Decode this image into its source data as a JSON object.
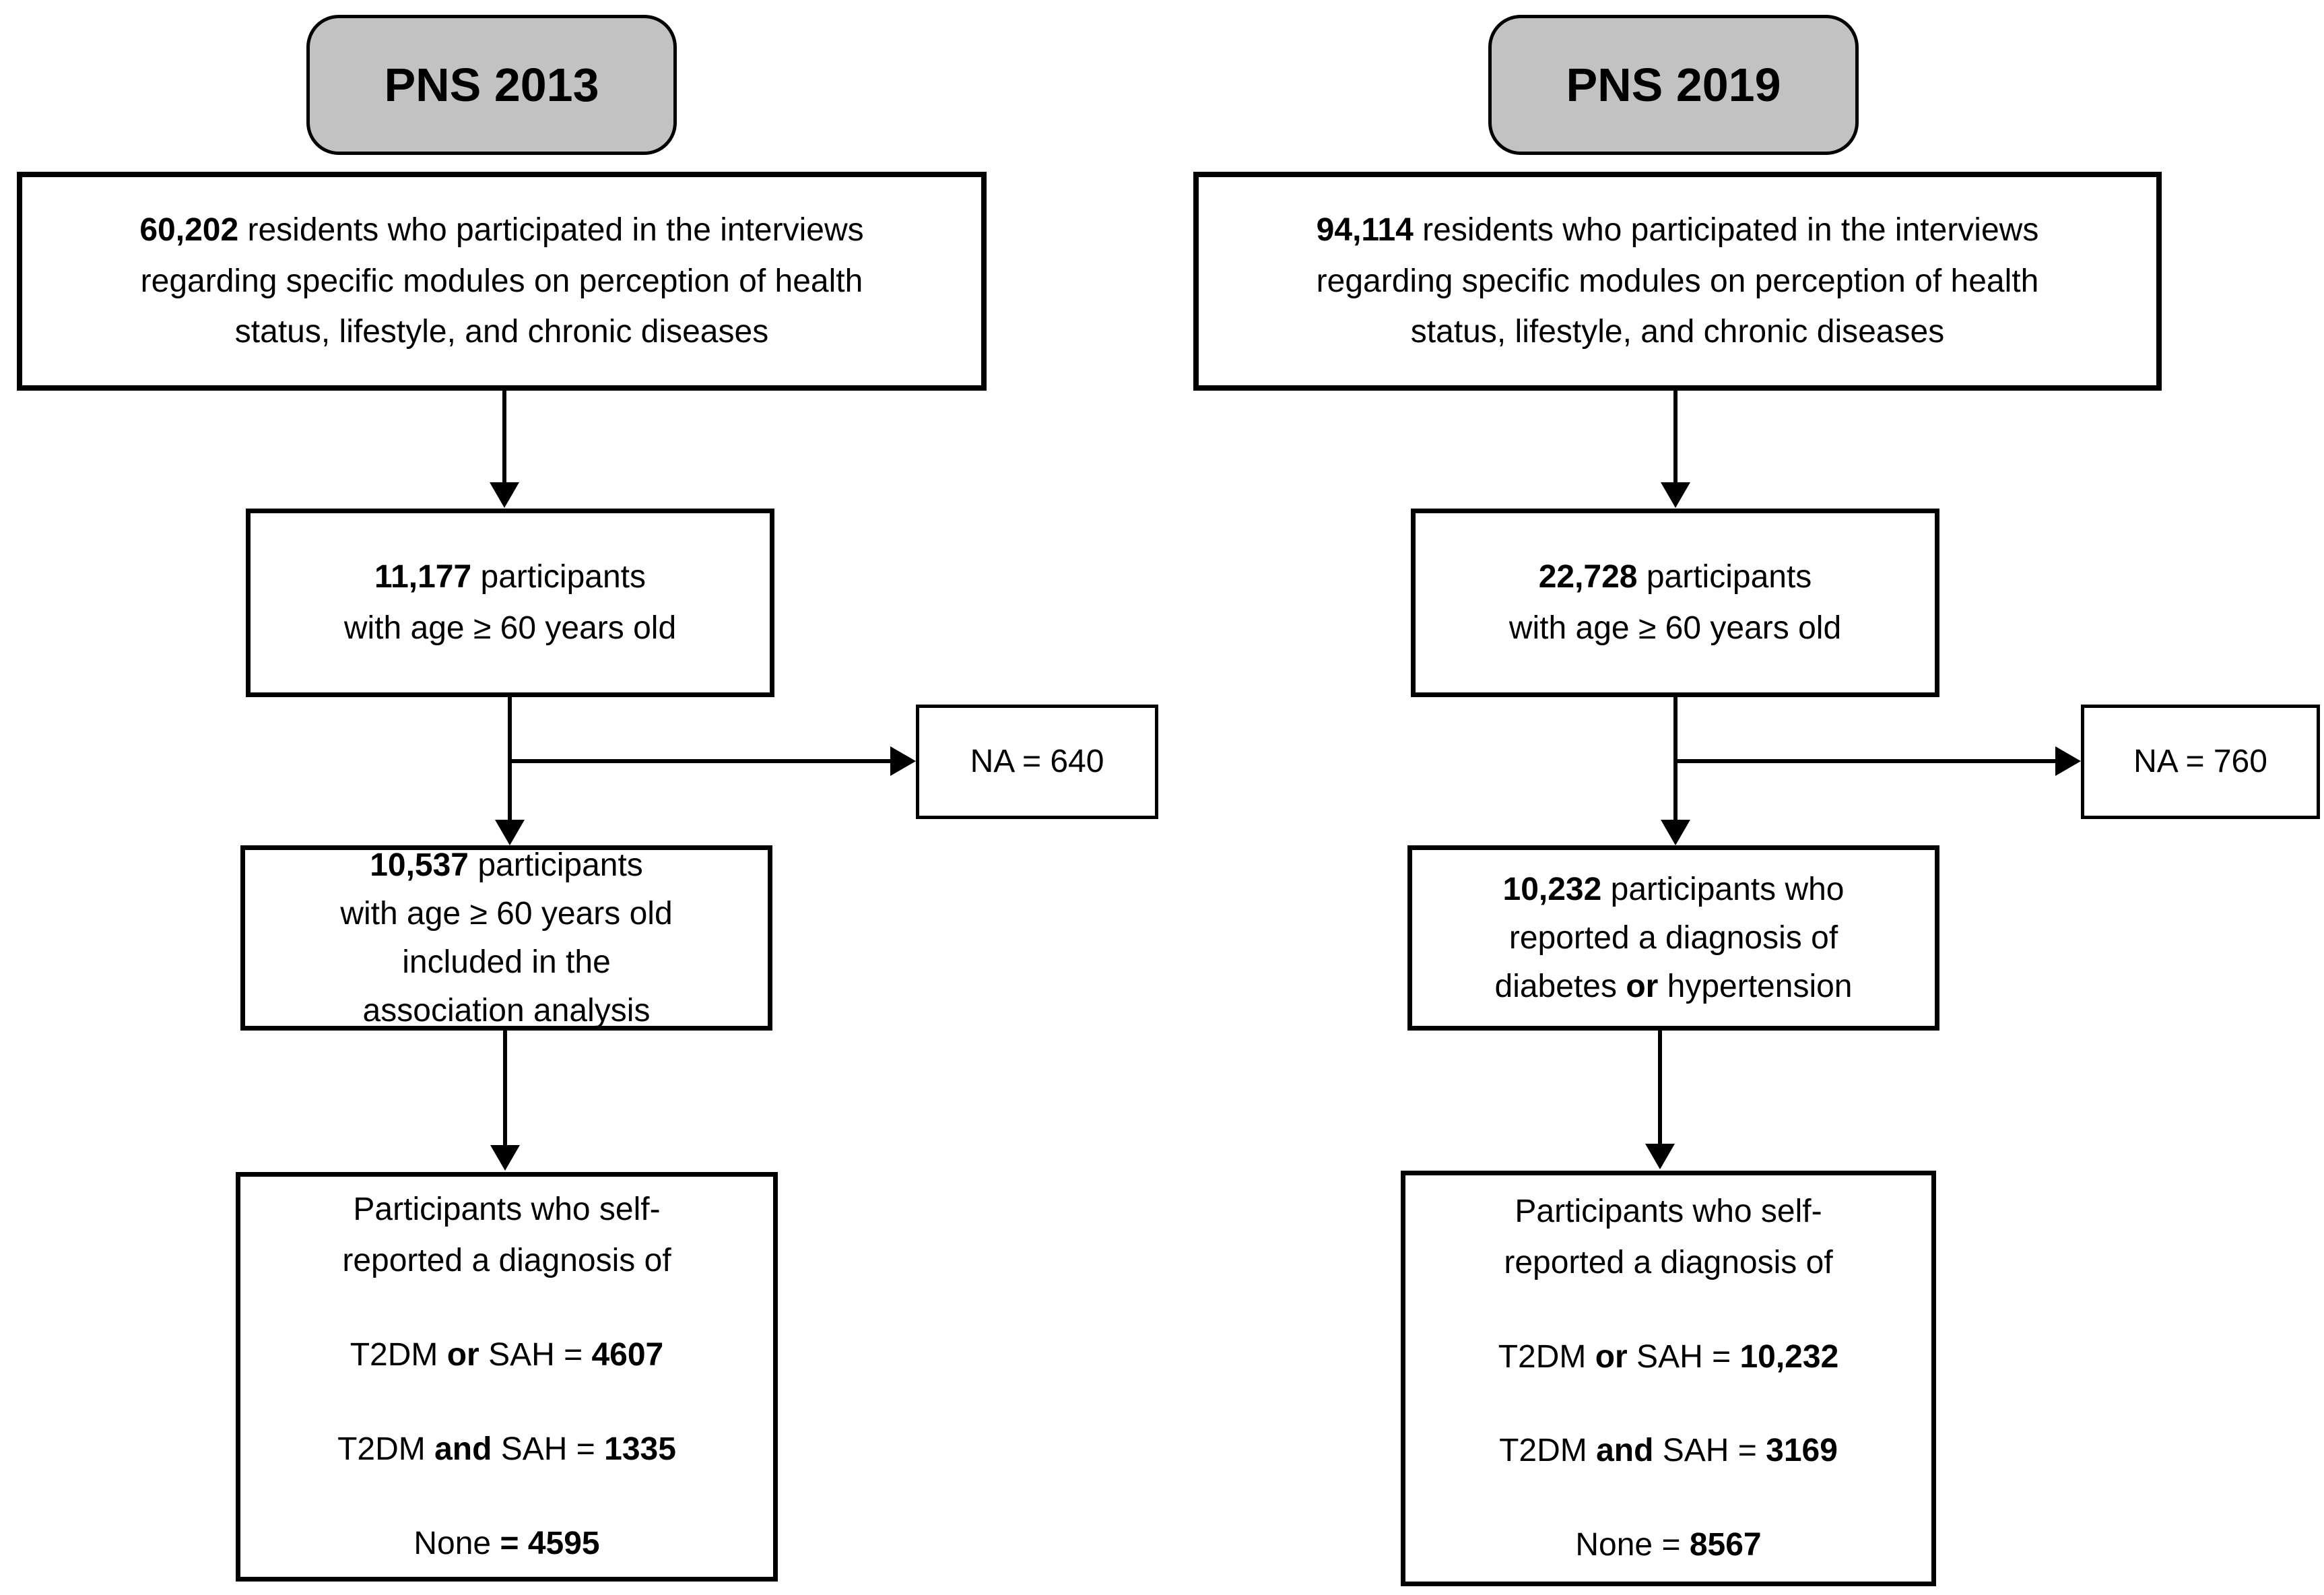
{
  "colors": {
    "background": "#ffffff",
    "header_fill": "#c2c2c2",
    "box_fill": "#ffffff",
    "line": "#000000"
  },
  "columns": [
    {
      "id": "pns-2013",
      "header_label": "PNS 2013",
      "box_residents": {
        "lines": [
          [
            {
              "t": "60,202",
              "b": 1
            },
            {
              "t": " residents who participated in the interviews",
              "b": 0
            }
          ],
          [
            {
              "t": "regarding specific modules on perception of health",
              "b": 0
            }
          ],
          [
            {
              "t": "status, lifestyle, and chronic diseases",
              "b": 0
            }
          ]
        ]
      },
      "box_age": {
        "lines": [
          [
            {
              "t": "11,177",
              "b": 1
            },
            {
              "t": " participants",
              "b": 0
            }
          ],
          [
            {
              "t": "with age ≥ 60 years old",
              "b": 0
            }
          ]
        ]
      },
      "box_na": {
        "label": "NA = 640"
      },
      "box_included": {
        "lines": [
          [
            {
              "t": "10,537",
              "b": 1
            },
            {
              "t": " participants",
              "b": 0
            }
          ],
          [
            {
              "t": "with age ≥ 60 years old",
              "b": 0
            }
          ],
          [
            {
              "t": "included in the",
              "b": 0
            }
          ],
          [
            {
              "t": "association analysis",
              "b": 0
            }
          ]
        ]
      },
      "box_diagnosis": {
        "intro": [
          [
            {
              "t": "Participants who self-",
              "b": 0
            }
          ],
          [
            {
              "t": "reported a diagnosis of",
              "b": 0
            }
          ]
        ],
        "items": [
          [
            {
              "t": "T2DM ",
              "b": 0
            },
            {
              "t": "or",
              "b": 1
            },
            {
              "t": " SAH = ",
              "b": 0
            },
            {
              "t": "4607",
              "b": 1
            }
          ],
          [
            {
              "t": "T2DM ",
              "b": 0
            },
            {
              "t": "and",
              "b": 1
            },
            {
              "t": " SAH = ",
              "b": 0
            },
            {
              "t": "1335",
              "b": 1
            }
          ],
          [
            {
              "t": "None ",
              "b": 0
            },
            {
              "t": "= 4595",
              "b": 1
            }
          ]
        ]
      }
    },
    {
      "id": "pns-2019",
      "header_label": "PNS 2019",
      "box_residents": {
        "lines": [
          [
            {
              "t": "94,114",
              "b": 1
            },
            {
              "t": " residents who participated in the interviews",
              "b": 0
            }
          ],
          [
            {
              "t": "regarding specific modules on perception of health",
              "b": 0
            }
          ],
          [
            {
              "t": "status, lifestyle, and chronic diseases",
              "b": 0
            }
          ]
        ]
      },
      "box_age": {
        "lines": [
          [
            {
              "t": "22,728",
              "b": 1
            },
            {
              "t": " participants",
              "b": 0
            }
          ],
          [
            {
              "t": "with age ≥ 60 years old",
              "b": 0
            }
          ]
        ]
      },
      "box_na": {
        "label": "NA = 760"
      },
      "box_included": {
        "lines": [
          [
            {
              "t": "10,232",
              "b": 1
            },
            {
              "t": " participants who",
              "b": 0
            }
          ],
          [
            {
              "t": "reported a diagnosis of",
              "b": 0
            }
          ],
          [
            {
              "t": "diabetes ",
              "b": 0
            },
            {
              "t": "or",
              "b": 1
            },
            {
              "t": " hypertension",
              "b": 0
            }
          ]
        ]
      },
      "box_diagnosis": {
        "intro": [
          [
            {
              "t": "Participants who self-",
              "b": 0
            }
          ],
          [
            {
              "t": "reported a diagnosis of",
              "b": 0
            }
          ]
        ],
        "items": [
          [
            {
              "t": "T2DM ",
              "b": 0
            },
            {
              "t": "or",
              "b": 1
            },
            {
              "t": " SAH = ",
              "b": 0
            },
            {
              "t": "10,232",
              "b": 1
            }
          ],
          [
            {
              "t": "T2DM ",
              "b": 0
            },
            {
              "t": "and",
              "b": 1
            },
            {
              "t": " SAH = ",
              "b": 0
            },
            {
              "t": "3169",
              "b": 1
            }
          ],
          [
            {
              "t": "None = ",
              "b": 0
            },
            {
              "t": "8567",
              "b": 1
            }
          ]
        ]
      }
    }
  ]
}
